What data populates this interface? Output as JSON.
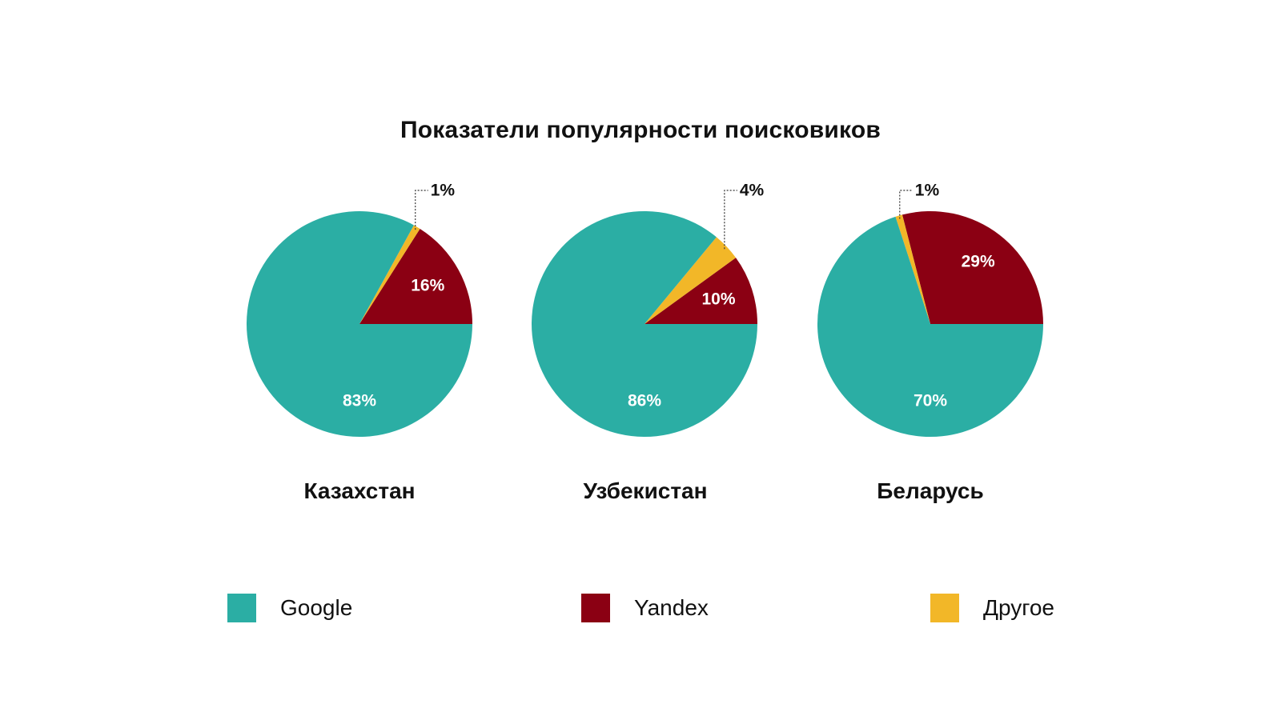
{
  "chart_data": {
    "type": "pie",
    "title": "Показатели популярности поисковиков",
    "colors": {
      "Google": "#2BAEA4",
      "Yandex": "#8B0013",
      "Другое": "#F2B728"
    },
    "legend": [
      {
        "name": "Google",
        "color": "#2BAEA4"
      },
      {
        "name": "Yandex",
        "color": "#8B0013"
      },
      {
        "name": "Другое",
        "color": "#F2B728"
      }
    ],
    "pies": [
      {
        "country": "Казахстан",
        "slices": [
          {
            "name": "Google",
            "value": 83,
            "label": "83%"
          },
          {
            "name": "Yandex",
            "value": 16,
            "label": "16%"
          },
          {
            "name": "Другое",
            "value": 1,
            "label": "1%"
          }
        ]
      },
      {
        "country": "Узбекистан",
        "slices": [
          {
            "name": "Google",
            "value": 86,
            "label": "86%"
          },
          {
            "name": "Yandex",
            "value": 10,
            "label": "10%"
          },
          {
            "name": "Другое",
            "value": 4,
            "label": "4%"
          }
        ]
      },
      {
        "country": "Беларусь",
        "slices": [
          {
            "name": "Google",
            "value": 70,
            "label": "70%"
          },
          {
            "name": "Yandex",
            "value": 29,
            "label": "29%"
          },
          {
            "name": "Другое",
            "value": 1,
            "label": "1%"
          }
        ]
      }
    ]
  }
}
